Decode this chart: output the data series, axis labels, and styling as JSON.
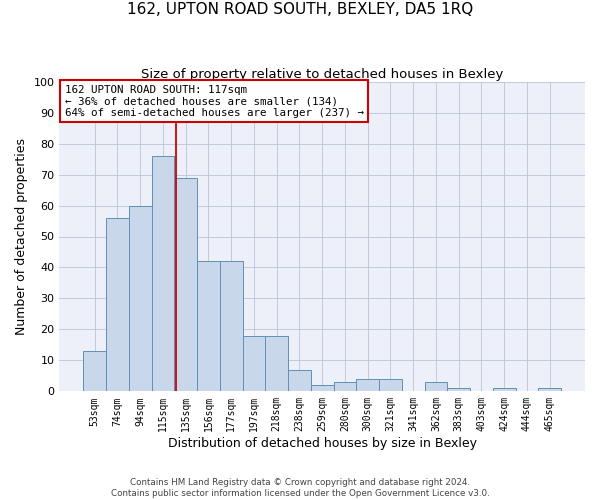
{
  "title": "162, UPTON ROAD SOUTH, BEXLEY, DA5 1RQ",
  "subtitle": "Size of property relative to detached houses in Bexley",
  "xlabel": "Distribution of detached houses by size in Bexley",
  "ylabel": "Number of detached properties",
  "categories": [
    "53sqm",
    "74sqm",
    "94sqm",
    "115sqm",
    "135sqm",
    "156sqm",
    "177sqm",
    "197sqm",
    "218sqm",
    "238sqm",
    "259sqm",
    "280sqm",
    "300sqm",
    "321sqm",
    "341sqm",
    "362sqm",
    "383sqm",
    "403sqm",
    "424sqm",
    "444sqm",
    "465sqm"
  ],
  "values": [
    13,
    56,
    60,
    76,
    69,
    42,
    42,
    18,
    18,
    7,
    2,
    3,
    4,
    4,
    0,
    3,
    1,
    0,
    1,
    0,
    1
  ],
  "bar_color": "#c8d8ea",
  "bar_edge_color": "#6090b8",
  "vline_color": "#cc0000",
  "vline_x": 2.5,
  "annotation_text": "162 UPTON ROAD SOUTH: 117sqm\n← 36% of detached houses are smaller (134)\n64% of semi-detached houses are larger (237) →",
  "annotation_box_facecolor": "#ffffff",
  "annotation_box_edgecolor": "#cc0000",
  "ylim": [
    0,
    100
  ],
  "yticks": [
    0,
    10,
    20,
    30,
    40,
    50,
    60,
    70,
    80,
    90,
    100
  ],
  "grid_color": "#b8c4d8",
  "ax_facecolor": "#edf0f8",
  "footer_line1": "Contains HM Land Registry data © Crown copyright and database right 2024.",
  "footer_line2": "Contains public sector information licensed under the Open Government Licence v3.0."
}
